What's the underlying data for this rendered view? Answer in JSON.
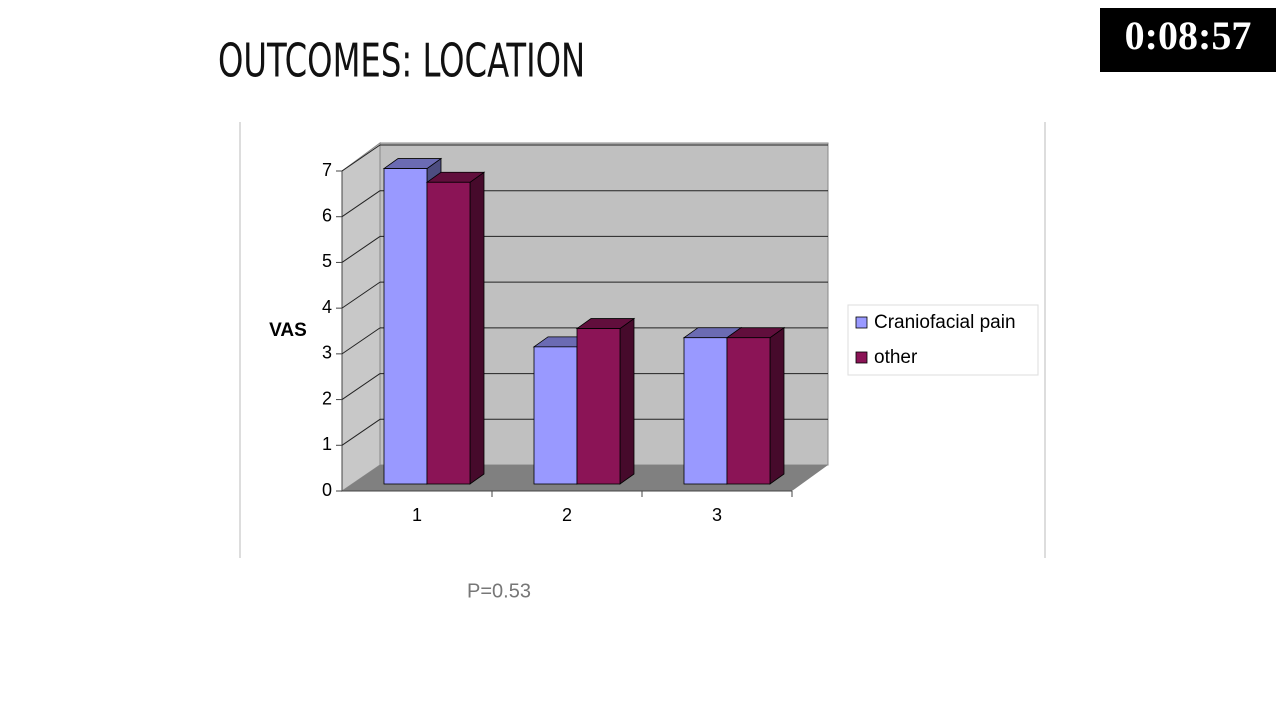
{
  "timer": "0:08:57",
  "slide_title": "OUTCOMES: LOCATION",
  "note": "P=0.53",
  "chart_data": {
    "type": "bar",
    "y_label": "VAS",
    "categories": [
      "1",
      "2",
      "3"
    ],
    "series": [
      {
        "name": "Craniofacial pain",
        "color": "#9999ff",
        "values": [
          6.9,
          3.0,
          3.2
        ]
      },
      {
        "name": "other",
        "color": "#8b1456",
        "values": [
          6.6,
          3.4,
          3.2
        ]
      }
    ],
    "ylim": [
      0,
      7
    ],
    "yticks": [
      0,
      1,
      2,
      3,
      4,
      5,
      6,
      7
    ],
    "grid": true
  }
}
